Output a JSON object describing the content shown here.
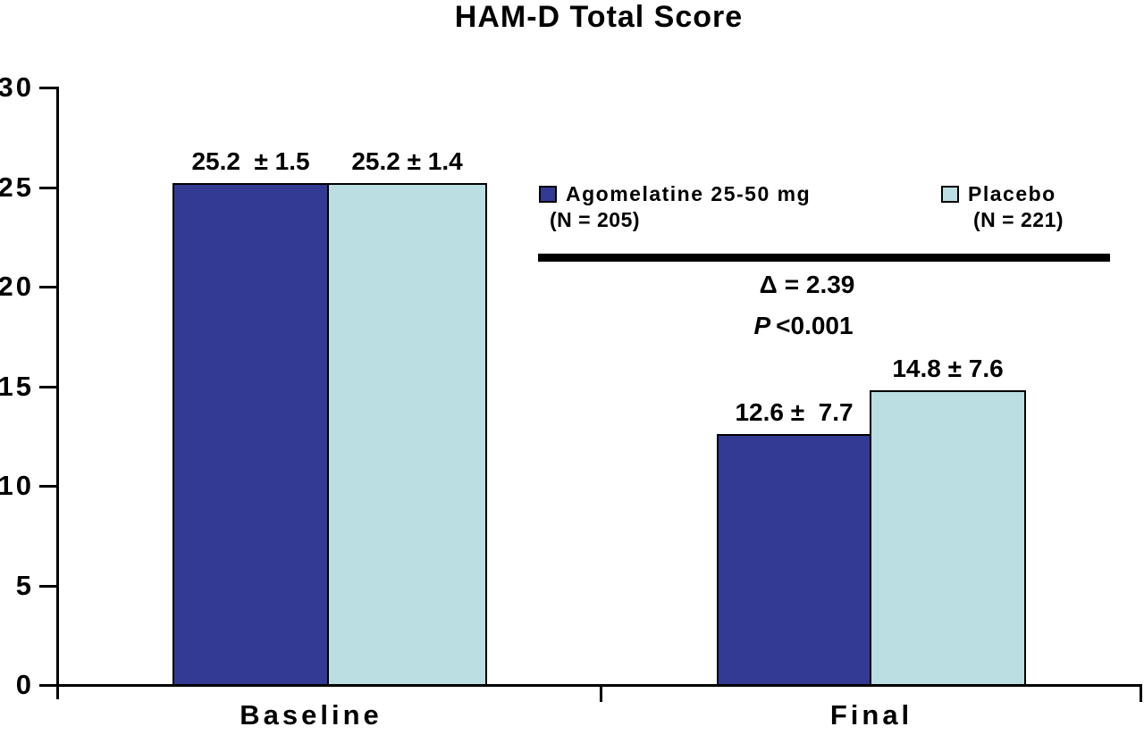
{
  "chart_data": {
    "type": "bar",
    "title": "HAM-D Total Score",
    "categories": [
      "Baseline",
      "Final"
    ],
    "series": [
      {
        "name": "Agomelatine 25-50 mg",
        "n_label": "(N = 205)",
        "color": "#333A93",
        "values": [
          25.2,
          12.6
        ],
        "sd": [
          1.5,
          7.7
        ],
        "value_labels": [
          "25.2  ± 1.5",
          "12.6 ±  7.7"
        ]
      },
      {
        "name": "Placebo",
        "n_label": "(N = 221)",
        "color": "#BADEE2",
        "values": [
          25.2,
          14.8
        ],
        "sd": [
          1.4,
          7.6
        ],
        "value_labels": [
          "25.2 ± 1.4",
          "14.8 ± 7.6"
        ]
      }
    ],
    "ylim": [
      0,
      30
    ],
    "yticks": [
      0,
      5,
      10,
      15,
      20,
      25,
      30
    ],
    "grid": false,
    "legend_position": "inside-right-upper",
    "annotations": {
      "delta_symbol": "Δ",
      "delta_text": "= 2.39",
      "p_label": "P",
      "p_value": "<0.001"
    }
  }
}
